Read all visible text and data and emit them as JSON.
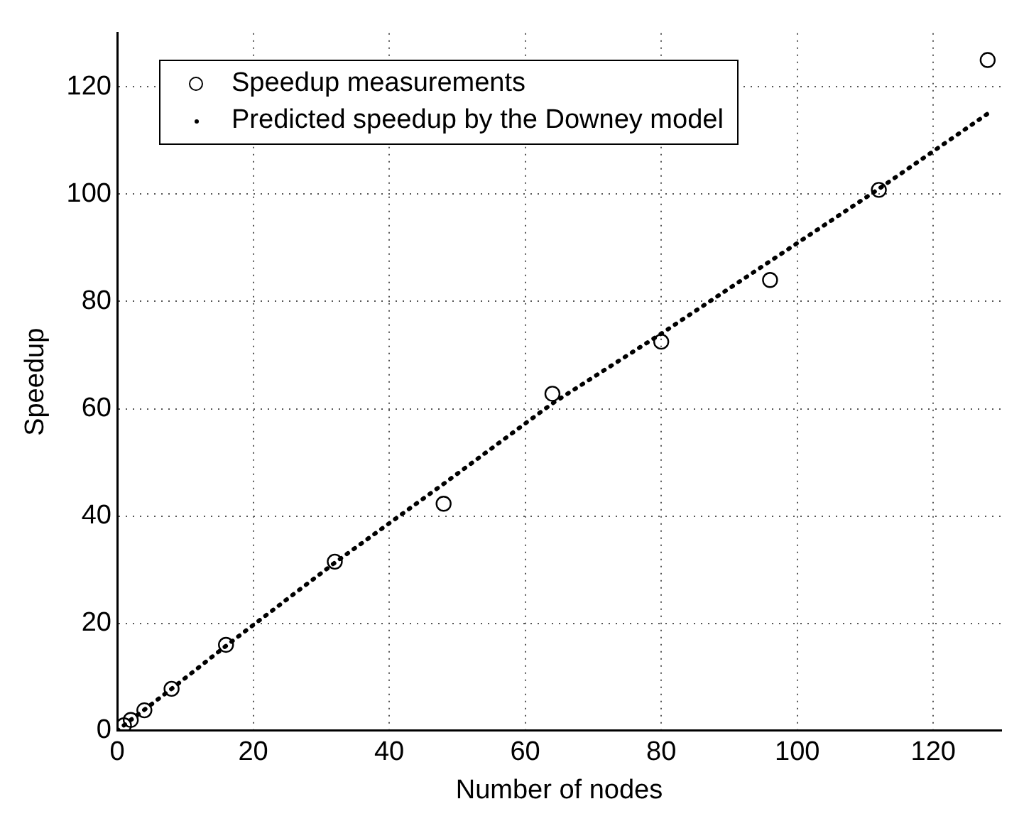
{
  "chart_data": {
    "type": "scatter",
    "xlabel": "Number of nodes",
    "ylabel": "Speedup",
    "xlim": [
      0,
      130
    ],
    "ylim": [
      0,
      130
    ],
    "xticks": [
      0,
      20,
      40,
      60,
      80,
      100,
      120
    ],
    "yticks": [
      0,
      20,
      40,
      60,
      80,
      100,
      120
    ],
    "grid": true,
    "legend": "top left",
    "series": [
      {
        "name": "Speedup measurements",
        "marker": "circle",
        "color": "#000000",
        "x": [
          1,
          2,
          4,
          8,
          16,
          32,
          48,
          64,
          80,
          96,
          112,
          128
        ],
        "values": [
          1,
          2,
          3.8,
          7.8,
          16,
          31.5,
          42.3,
          62.8,
          72.5,
          84,
          100.8,
          125
        ]
      },
      {
        "name": "Predicted speedup by the Downey model",
        "type": "line",
        "marker": "none",
        "line_style": "dotted",
        "color": "#000000",
        "x": [
          0,
          1,
          2,
          4,
          8,
          16,
          32,
          48,
          64,
          80,
          96,
          112,
          128
        ],
        "values": [
          0,
          1,
          2,
          3.9,
          7.8,
          15.8,
          31.3,
          46,
          61,
          74,
          87.5,
          101,
          115
        ]
      }
    ]
  }
}
